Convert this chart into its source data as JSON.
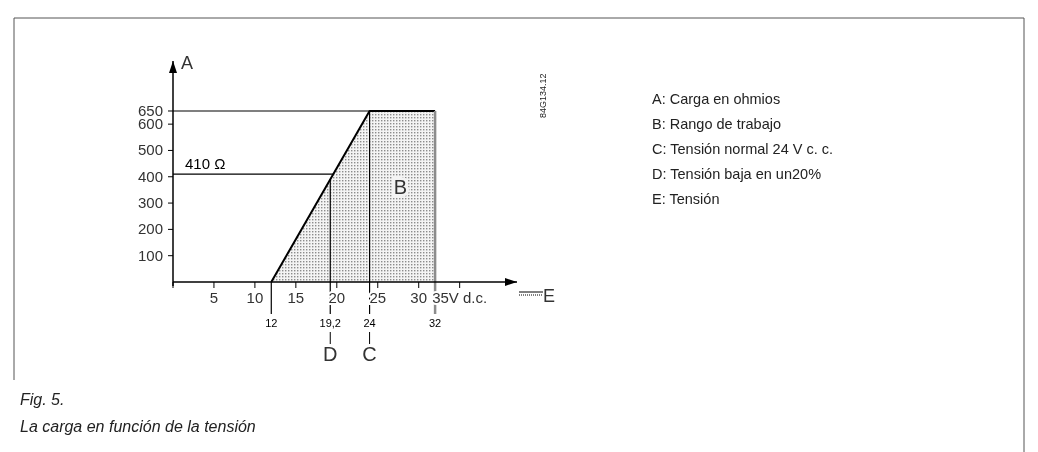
{
  "chart_data": {
    "type": "area",
    "title": "Fig. 5.",
    "subtitle": "La carga en función de la tensión",
    "xlabel": "E",
    "ylabel": "A",
    "x": [
      12,
      24,
      32
    ],
    "values": [
      0,
      650,
      650
    ],
    "color": "#8c8c8c",
    "xlim": [
      0,
      42
    ],
    "ylim": [
      0,
      840
    ],
    "xticks": [
      5,
      10,
      15,
      20,
      25,
      30,
      {
        "value": 35,
        "label": "35V d.c."
      }
    ],
    "yticks": [
      100,
      200,
      300,
      400,
      500,
      600,
      650
    ],
    "ref_lines": [
      {
        "axis": "x",
        "value": 12,
        "label": "12"
      },
      {
        "axis": "x",
        "value": 19.2,
        "label": "19,2"
      },
      {
        "axis": "x",
        "value": 24,
        "label": "24"
      },
      {
        "axis": "x",
        "value": 32,
        "label": "32",
        "color": "#8c8c8c"
      },
      {
        "axis": "y",
        "value": 410,
        "label": "410 Ω"
      },
      {
        "axis": "y",
        "value": 650,
        "label": null
      }
    ],
    "annotations": [
      "B",
      "D",
      "C",
      "A: Carga en ohmios",
      "B: Rango de trabajo",
      "C: Tensión normal 24 V c. c.",
      "D:  Tensión baja en un20%",
      "E: Tensión",
      "84G134.12"
    ],
    "grid": false
  }
}
